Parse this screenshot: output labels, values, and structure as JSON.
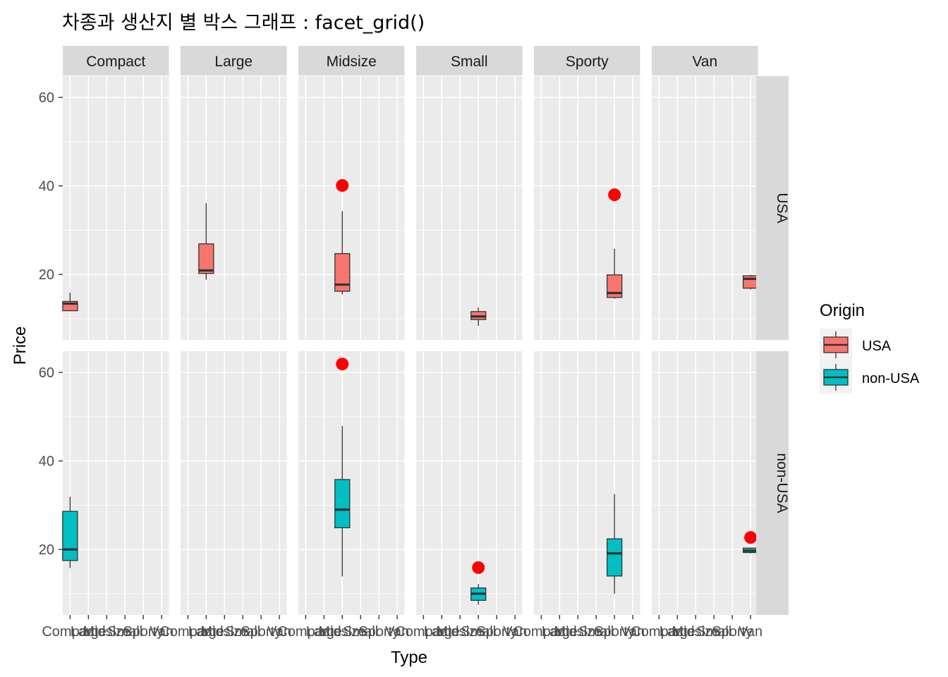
{
  "chart_data": {
    "type": "boxplot",
    "title": "차종과 생산지 별 박스 그래프 : facet_grid()",
    "xlabel": "Type",
    "ylabel": "Price",
    "y_ticks": [
      20,
      40,
      60
    ],
    "ylim": [
      5.2,
      64.8
    ],
    "categories": [
      "Compact",
      "Large",
      "Midsize",
      "Small",
      "Sporty",
      "Van"
    ],
    "col_facets": [
      "Compact",
      "Large",
      "Midsize",
      "Small",
      "Sporty",
      "Van"
    ],
    "row_facets": [
      "USA",
      "non-USA"
    ],
    "legend": {
      "title": "Origin",
      "position": "right",
      "items": [
        {
          "label": "USA",
          "color": "#F8766D"
        },
        {
          "label": "non-USA",
          "color": "#00BFC4"
        }
      ]
    },
    "colors": {
      "panel_bg": "#EBEBEB",
      "grid": "#FFFFFF",
      "strip_bg": "#D9D9D9",
      "outlier": "#FF0000",
      "box_line": "#333333"
    },
    "boxes": [
      {
        "row": "USA",
        "col": "Compact",
        "lower": 11.8,
        "q1": 11.8,
        "median": 13.4,
        "q3": 13.9,
        "upper": 15.9,
        "outliers": []
      },
      {
        "row": "USA",
        "col": "Large",
        "lower": 18.8,
        "q1": 20.2,
        "median": 20.9,
        "q3": 26.9,
        "upper": 36.1,
        "outliers": []
      },
      {
        "row": "USA",
        "col": "Midsize",
        "lower": 15.5,
        "q1": 16.2,
        "median": 17.7,
        "q3": 24.7,
        "upper": 34.3,
        "outliers": [
          40.1
        ]
      },
      {
        "row": "USA",
        "col": "Small",
        "lower": 8.4,
        "q1": 9.8,
        "median": 10.5,
        "q3": 11.6,
        "upper": 12.5,
        "outliers": []
      },
      {
        "row": "USA",
        "col": "Sporty",
        "lower": 14.5,
        "q1": 14.8,
        "median": 15.8,
        "q3": 19.9,
        "upper": 25.8,
        "outliers": [
          38.0
        ]
      },
      {
        "row": "USA",
        "col": "Van",
        "lower": 16.6,
        "q1": 16.9,
        "median": 19.0,
        "q3": 19.7,
        "upper": 19.9,
        "outliers": []
      },
      {
        "row": "non-USA",
        "col": "Compact",
        "lower": 15.8,
        "q1": 17.5,
        "median": 20.0,
        "q3": 28.6,
        "upper": 31.9,
        "outliers": []
      },
      {
        "row": "non-USA",
        "col": "Midsize",
        "lower": 13.9,
        "q1": 24.9,
        "median": 29.0,
        "q3": 35.8,
        "upper": 47.9,
        "outliers": [
          61.9
        ]
      },
      {
        "row": "non-USA",
        "col": "Small",
        "lower": 7.5,
        "q1": 8.5,
        "median": 10.0,
        "q3": 11.3,
        "upper": 12.2,
        "outliers": [
          15.9
        ]
      },
      {
        "row": "non-USA",
        "col": "Sporty",
        "lower": 10.0,
        "q1": 14.0,
        "median": 19.1,
        "q3": 22.4,
        "upper": 32.5,
        "outliers": []
      },
      {
        "row": "non-USA",
        "col": "Van",
        "lower": 19.1,
        "q1": 19.3,
        "median": 19.7,
        "q3": 20.3,
        "upper": 20.4,
        "outliers": [
          22.7
        ]
      }
    ]
  }
}
